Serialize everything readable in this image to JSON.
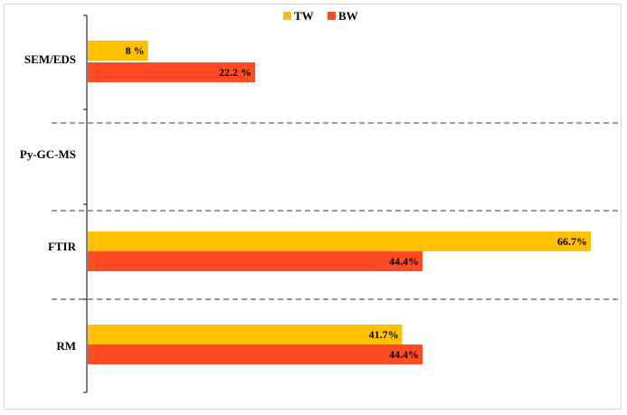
{
  "chart_data": {
    "type": "bar",
    "orientation": "horizontal",
    "categories": [
      "SEM/EDS",
      "Py-GC-MS",
      "FTIR",
      "RM"
    ],
    "series": [
      {
        "name": "TW",
        "color": "#FFC000",
        "values": [
          8,
          null,
          66.7,
          41.7
        ],
        "labels": [
          "8 %",
          "",
          "66.7%",
          "41.7%"
        ]
      },
      {
        "name": "BW",
        "color": "#FF4B23",
        "values": [
          22.2,
          null,
          44.4,
          44.4
        ],
        "labels": [
          "22.2 %",
          "",
          "44.4%",
          "44.4%"
        ]
      }
    ],
    "xlim": [
      0,
      70
    ],
    "legend": "top-center",
    "grid": false,
    "category_separators": "dashed"
  }
}
